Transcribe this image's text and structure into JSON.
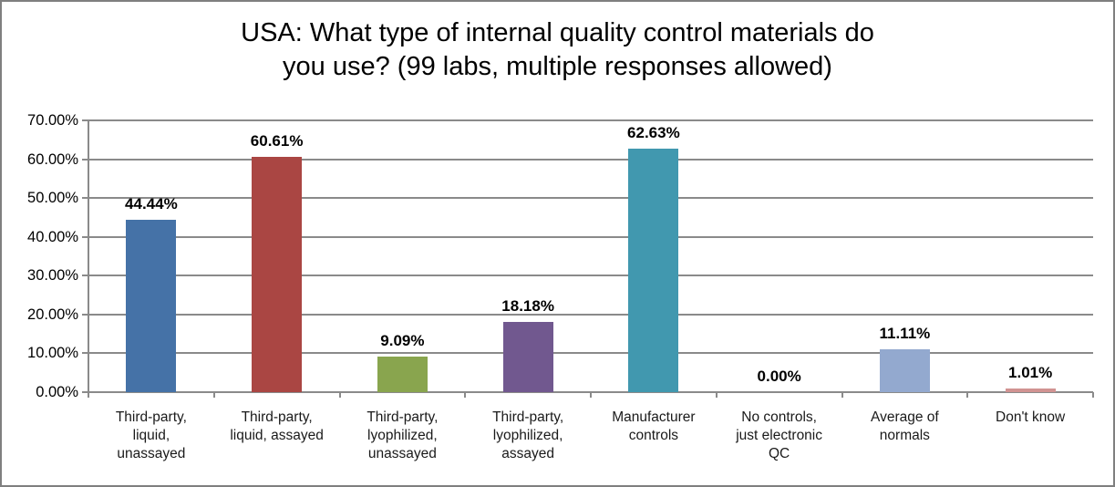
{
  "chart_data": {
    "type": "bar",
    "title": "USA: What type of internal quality control materials do you use? (99 labs, multiple responses allowed)",
    "title_lines": [
      "USA: What type of internal quality control materials do",
      "you use? (99 labs, multiple responses allowed)"
    ],
    "categories": [
      "Third-party, liquid, unassayed",
      "Third-party, liquid, assayed",
      "Third-party, lyophilized, unassayed",
      "Third-party, lyophilized, assayed",
      "Manufacturer controls",
      "No controls, just electronic QC",
      "Average of normals",
      "Don't know"
    ],
    "x_label_lines": [
      [
        "Third-party,",
        "liquid,",
        "unassayed"
      ],
      [
        "Third-party,",
        "liquid, assayed"
      ],
      [
        "Third-party,",
        "lyophilized,",
        "unassayed"
      ],
      [
        "Third-party,",
        "lyophilized,",
        "assayed"
      ],
      [
        "Manufacturer",
        "controls"
      ],
      [
        "No controls,",
        "just electronic",
        "QC"
      ],
      [
        "Average of",
        "normals"
      ],
      [
        "Don't know"
      ]
    ],
    "values": [
      44.44,
      60.61,
      9.09,
      18.18,
      62.63,
      0.0,
      11.11,
      1.01
    ],
    "value_labels": [
      "44.44%",
      "60.61%",
      "9.09%",
      "18.18%",
      "62.63%",
      "0.00%",
      "11.11%",
      "1.01%"
    ],
    "bar_colors": [
      "#4572a7",
      "#aa4643",
      "#89a54e",
      "#71588f",
      "#4198af",
      null,
      "#93a9cf",
      "#d19392"
    ],
    "y_ticks": [
      "0.00%",
      "10.00%",
      "20.00%",
      "30.00%",
      "40.00%",
      "50.00%",
      "60.00%",
      "70.00%"
    ],
    "ylim": [
      0,
      70
    ],
    "xlabel": "",
    "ylabel": "",
    "grid": true,
    "legend": false,
    "colors": {
      "gridline": "#8a8a8a",
      "axis": "#8a8a8a",
      "frame_border": "#7f7f7f",
      "text": "#000000",
      "background": "#ffffff"
    }
  }
}
